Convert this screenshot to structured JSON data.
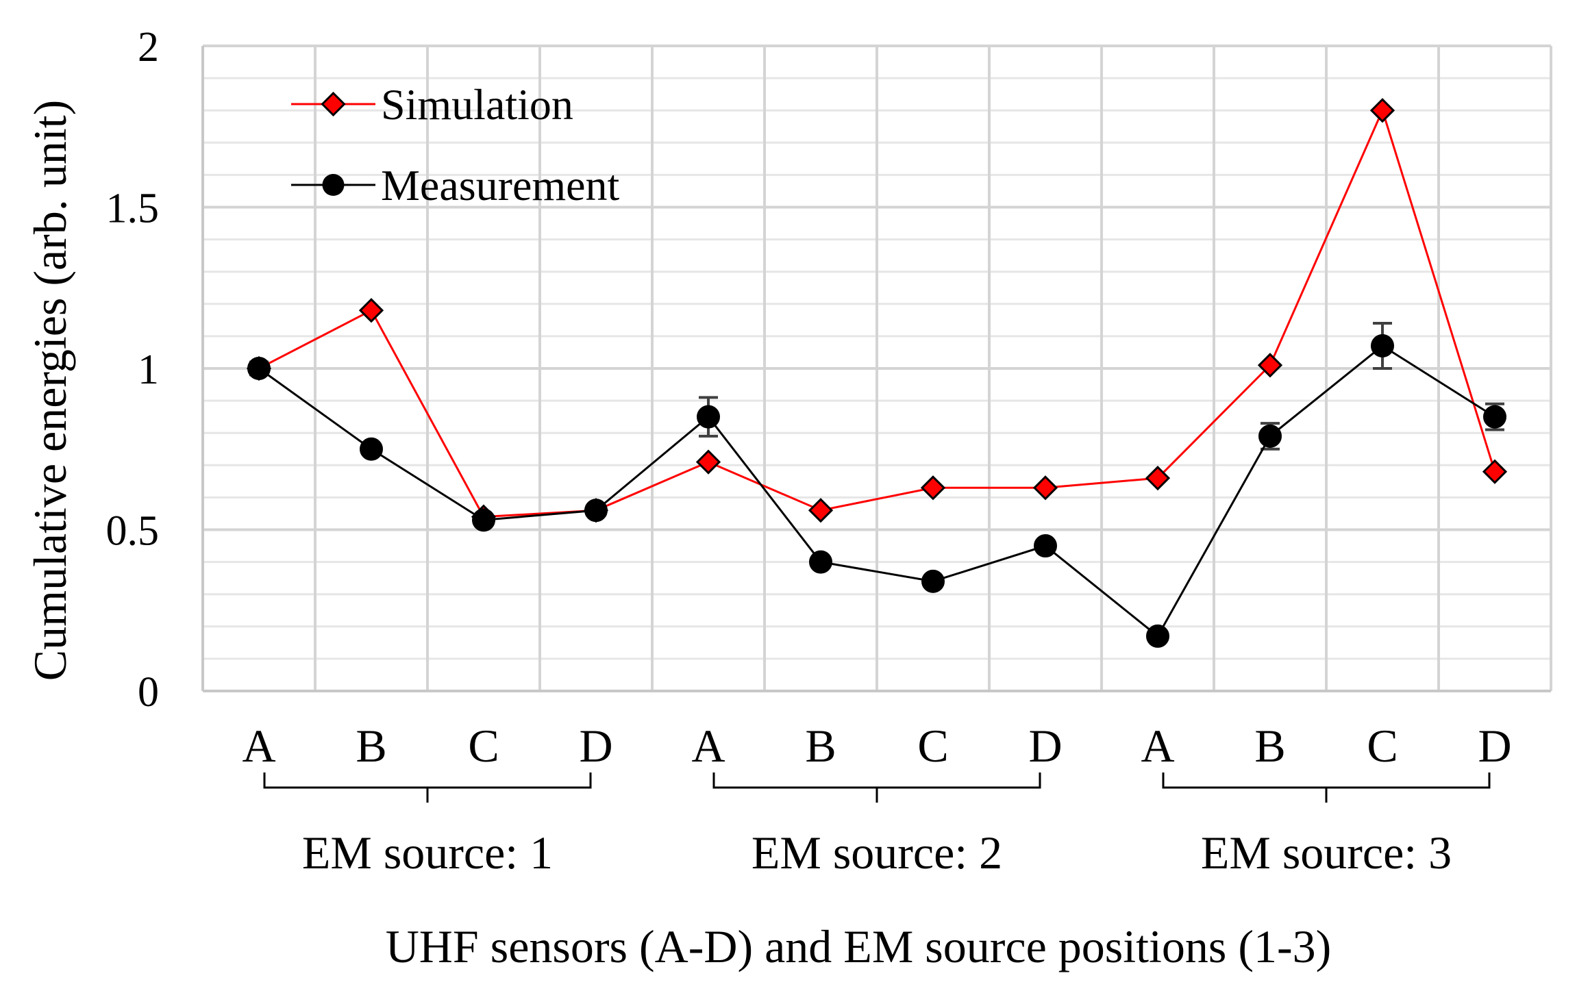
{
  "chart_data": {
    "type": "line",
    "xlabel": "UHF sensors (A-D) and EM source positions (1-3)",
    "ylabel": "Cumulative energies (arb. unit)",
    "ylim": [
      0,
      2
    ],
    "yticks": [
      "0",
      "0.5",
      "1",
      "1.5",
      "2"
    ],
    "grid": true,
    "legend_position": "top-left",
    "categories": [
      "A",
      "B",
      "C",
      "D",
      "A",
      "B",
      "C",
      "D",
      "A",
      "B",
      "C",
      "D"
    ],
    "groups": [
      {
        "label": "EM source: 1",
        "count": 4
      },
      {
        "label": "EM source: 2",
        "count": 4
      },
      {
        "label": "EM source: 3",
        "count": 4
      }
    ],
    "series": [
      {
        "name": "Simulation",
        "color": "#ff0000",
        "marker": "diamond",
        "values": [
          1.0,
          1.18,
          0.54,
          0.56,
          0.71,
          0.56,
          0.63,
          0.63,
          0.66,
          1.01,
          1.8,
          0.68
        ]
      },
      {
        "name": "Measurement",
        "color": "#000000",
        "marker": "circle",
        "values": [
          1.0,
          0.75,
          0.53,
          0.56,
          0.85,
          0.4,
          0.34,
          0.45,
          0.17,
          0.79,
          1.07,
          0.85
        ],
        "error": [
          0.02,
          0.0,
          0.0,
          0.0,
          0.06,
          0.0,
          0.0,
          0.0,
          0.0,
          0.04,
          0.07,
          0.04
        ]
      }
    ]
  }
}
